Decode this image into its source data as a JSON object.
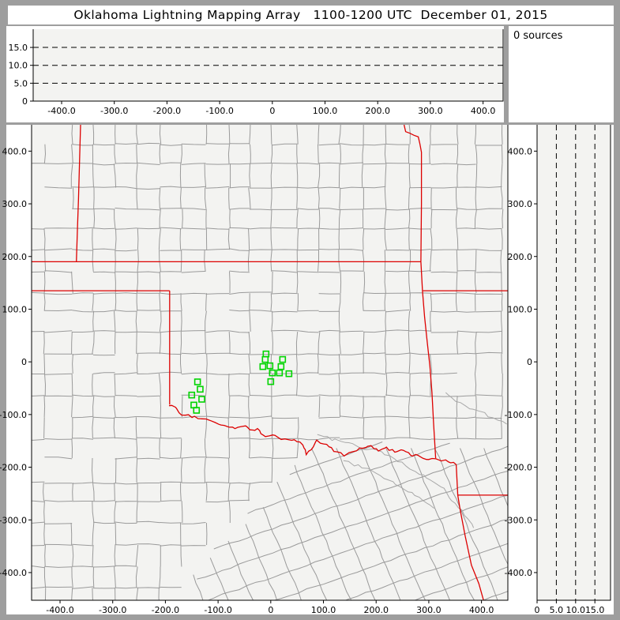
{
  "title": "Oklahoma Lightning Mapping Array   1100-1200 UTC  December 01, 2015",
  "sources_panel": {
    "label": "0 sources"
  },
  "colors": {
    "window_gray": "#9e9e9e",
    "panel_bg": "#ffffff",
    "plot_bg": "#f3f3f1",
    "axis": "#000000",
    "county_line": "#9a9a9a",
    "river_line": "#a8a8a8",
    "state_border": "#dd0000",
    "station": "#00d400",
    "text": "#000000"
  },
  "axes": {
    "ew": {
      "tick_km": [
        -400,
        -300,
        -200,
        -100,
        0,
        100,
        200,
        300,
        400
      ],
      "labels": [
        "-400.0",
        "-300.0",
        "-200.0",
        "-100.0",
        "0",
        "100.0",
        "200.0",
        "300.0",
        "400.0"
      ]
    },
    "ns": {
      "tick_km": [
        400,
        300,
        200,
        100,
        0,
        -100,
        -200,
        -300,
        -400
      ],
      "labels": [
        "400.0",
        "300.0",
        "200.0",
        "100.0",
        "0",
        "-100.0",
        "-200.0",
        "-300.0",
        "-400.0"
      ]
    },
    "alt": {
      "tick_km": [
        0,
        5,
        10,
        15
      ],
      "labels": [
        "0",
        "5.0",
        "10.0",
        "15.0"
      ],
      "dashed_km": [
        5,
        10,
        15
      ]
    }
  },
  "chart_data": {
    "type": "scatter",
    "title": "Oklahoma Lightning Mapping Array   1100-1200 UTC  December 01, 2015",
    "source_count_label": "0 sources",
    "xlabel": "",
    "ylabel": "",
    "xlim_km": [
      -454,
      450
    ],
    "ylim_km": [
      -453,
      450
    ],
    "alt_lim_km": [
      0,
      19
    ],
    "lightning_sources": [],
    "station_markers_km": [
      [
        -9,
        15
      ],
      [
        -10.5,
        4.5
      ],
      [
        -15,
        -9
      ],
      [
        -1.5,
        -7.5
      ],
      [
        3,
        -21
      ],
      [
        16.5,
        -21
      ],
      [
        0,
        -37.5
      ],
      [
        22.5,
        4.5
      ],
      [
        19.5,
        -9
      ],
      [
        34.5,
        -22.5
      ],
      [
        -139,
        -38
      ],
      [
        -134,
        -52
      ],
      [
        -150,
        -63
      ],
      [
        -131,
        -71
      ],
      [
        -146,
        -82
      ],
      [
        -141,
        -92
      ]
    ]
  },
  "map": {
    "state_borders_km": [
      {
        "id": "colorado-kansas",
        "pts": [
          [
            -361,
            450
          ],
          [
            -363,
            380
          ],
          [
            -365,
            310
          ],
          [
            -367,
            250
          ],
          [
            -369,
            190
          ]
        ]
      },
      {
        "id": "kansas-oklahoma-37n",
        "pts": [
          [
            -454,
            190
          ],
          [
            285,
            190
          ]
        ]
      },
      {
        "id": "texas-north-36-5n",
        "pts": [
          [
            -454,
            135
          ],
          [
            -192,
            135
          ]
        ]
      },
      {
        "id": "texas-oklahoma-100w",
        "pts": [
          [
            -192,
            135
          ],
          [
            -192,
            -81
          ]
        ]
      },
      {
        "id": "east-border-north",
        "pts": [
          [
            253,
            450
          ],
          [
            256,
            437
          ],
          [
            264,
            434
          ],
          [
            272,
            430
          ],
          [
            280,
            427
          ],
          [
            283,
            414
          ],
          [
            286,
            398
          ],
          [
            286,
            300
          ],
          [
            285,
            190
          ]
        ]
      },
      {
        "id": "east-border-south",
        "pts": [
          [
            285,
            190
          ],
          [
            288,
            135
          ],
          [
            292,
            85
          ],
          [
            297,
            38
          ],
          [
            302,
            -8
          ],
          [
            306,
            -58
          ],
          [
            309,
            -115
          ],
          [
            311,
            -150
          ],
          [
            313,
            -183
          ]
        ]
      },
      {
        "id": "missouri-arkansas-36-5n",
        "pts": [
          [
            289,
            135
          ],
          [
            450,
            135
          ]
        ]
      },
      {
        "id": "texas-arkansas",
        "pts": [
          [
            352,
            -195
          ],
          [
            355,
            -253
          ],
          [
            359,
            -278
          ],
          [
            369,
            -330
          ],
          [
            381,
            -386
          ],
          [
            395,
            -421
          ],
          [
            404,
            -453
          ]
        ]
      },
      {
        "id": "arkansas-louisiana-33n",
        "pts": [
          [
            355,
            -253
          ],
          [
            450,
            -253
          ]
        ]
      }
    ],
    "red_river_km": [
      [
        -192,
        -81
      ],
      [
        -181,
        -84
      ],
      [
        -169,
        -100
      ],
      [
        -144,
        -105
      ],
      [
        -124,
        -108
      ],
      [
        -106,
        -115
      ],
      [
        -87,
        -120
      ],
      [
        -67,
        -126
      ],
      [
        -49,
        -120
      ],
      [
        -34,
        -130
      ],
      [
        -24,
        -126
      ],
      [
        -15,
        -141
      ],
      [
        3,
        -138
      ],
      [
        21,
        -148
      ],
      [
        40,
        -147
      ],
      [
        60,
        -156
      ],
      [
        66,
        -175
      ],
      [
        78,
        -168
      ],
      [
        88,
        -148
      ],
      [
        100,
        -156
      ],
      [
        115,
        -165
      ],
      [
        138,
        -178
      ],
      [
        156,
        -168
      ],
      [
        175,
        -165
      ],
      [
        190,
        -160
      ],
      [
        205,
        -168
      ],
      [
        220,
        -163
      ],
      [
        235,
        -171
      ],
      [
        253,
        -168
      ],
      [
        265,
        -178
      ],
      [
        280,
        -177
      ],
      [
        295,
        -183
      ],
      [
        313,
        -183
      ],
      [
        325,
        -187
      ],
      [
        337,
        -190
      ],
      [
        352,
        -195
      ]
    ],
    "rivers_km": [
      [
        [
          90,
          -140
        ],
        [
          150,
          -155
        ],
        [
          200,
          -170
        ],
        [
          250,
          -190
        ],
        [
          280,
          -212
        ],
        [
          320,
          -235
        ],
        [
          345,
          -262
        ],
        [
          370,
          -290
        ],
        [
          385,
          -315
        ]
      ],
      [
        [
          140,
          -188
        ],
        [
          185,
          -205
        ],
        [
          230,
          -228
        ],
        [
          275,
          -255
        ],
        [
          310,
          -278
        ]
      ],
      [
        [
          330,
          -60
        ],
        [
          360,
          -80
        ],
        [
          395,
          -95
        ],
        [
          430,
          -110
        ],
        [
          448,
          -118
        ]
      ]
    ]
  }
}
